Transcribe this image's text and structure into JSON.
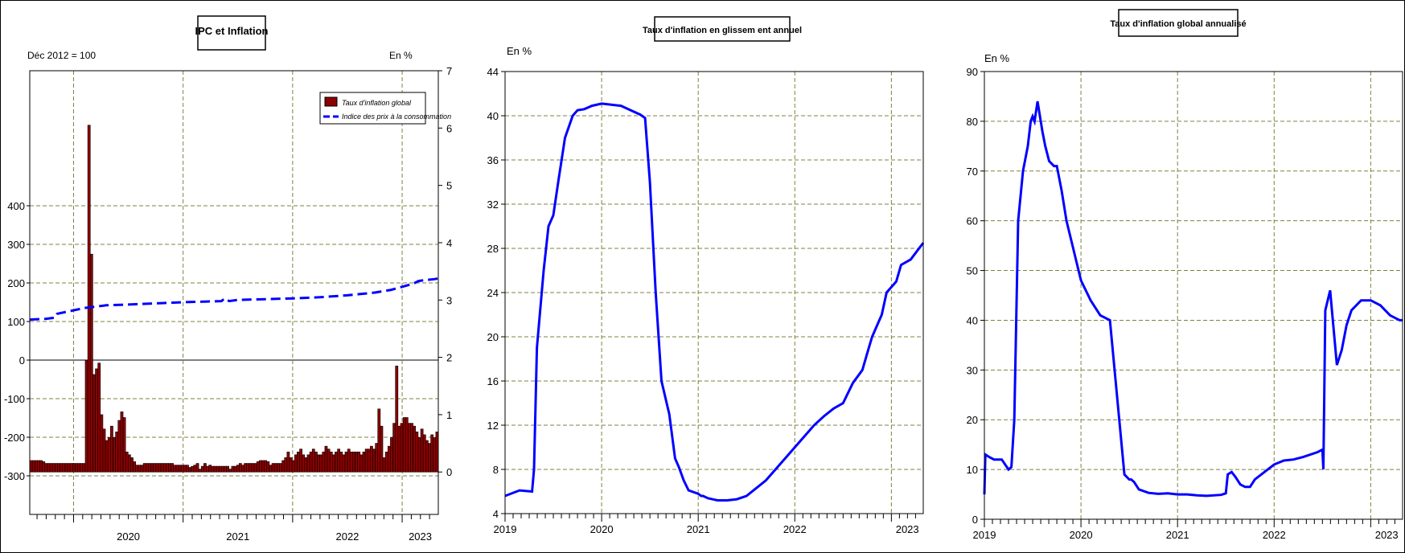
{
  "colors": {
    "frame": "#000000",
    "grid": "#808040",
    "line": "#0000ff",
    "bar_fill": "#8b0000",
    "bar_stroke": "#000000",
    "background": "#ffffff"
  },
  "chart_data": [
    {
      "type": "bar+line",
      "title": "IPC et Inflation",
      "left_axis_label": "Déc 2012 = 100",
      "right_axis_label": "En %",
      "left_ylim": [
        -400,
        750
      ],
      "left_ticks": [
        "-300",
        "-200",
        "-100",
        "0",
        "100",
        "200",
        "300",
        "400"
      ],
      "right_ylim": [
        -0.74,
        7
      ],
      "right_ticks": [
        "0",
        "1",
        "2",
        "3",
        "4",
        "5",
        "6",
        "7"
      ],
      "x_start": 2019.6,
      "x_end": 2023.33,
      "year_labels": [
        "2020",
        "2021",
        "2022",
        "2023"
      ],
      "grid": true,
      "legend_position": "top-right",
      "legend": [
        "Taux d'inflation global",
        "Indice des prix à la consommation"
      ],
      "series": [
        {
          "name": "Taux d'inflation global",
          "type": "bar",
          "axis": "right",
          "values": [
            0.2,
            0.2,
            0.2,
            0.2,
            0.2,
            0.18,
            0.15,
            0.15,
            0.15,
            0.15,
            0.15,
            0.15,
            0.15,
            0.15,
            0.15,
            0.15,
            0.15,
            0.15,
            0.15,
            0.15,
            0.15,
            0.15,
            1.95,
            6.05,
            3.8,
            1.7,
            1.8,
            1.9,
            1.0,
            0.75,
            0.55,
            0.6,
            0.8,
            0.6,
            0.7,
            0.9,
            1.05,
            0.95,
            0.35,
            0.3,
            0.25,
            0.18,
            0.12,
            0.12,
            0.12,
            0.15,
            0.15,
            0.15,
            0.15,
            0.15,
            0.15,
            0.15,
            0.15,
            0.15,
            0.15,
            0.15,
            0.15,
            0.12,
            0.12,
            0.12,
            0.12,
            0.12,
            0.12,
            0.08,
            0.1,
            0.12,
            0.15,
            0.05,
            0.1,
            0.15,
            0.1,
            0.12,
            0.1,
            0.1,
            0.1,
            0.1,
            0.1,
            0.1,
            0.1,
            0.05,
            0.1,
            0.1,
            0.12,
            0.15,
            0.12,
            0.15,
            0.15,
            0.15,
            0.15,
            0.15,
            0.18,
            0.2,
            0.2,
            0.2,
            0.18,
            0.12,
            0.15,
            0.15,
            0.15,
            0.15,
            0.2,
            0.25,
            0.35,
            0.25,
            0.2,
            0.3,
            0.35,
            0.4,
            0.3,
            0.25,
            0.3,
            0.35,
            0.4,
            0.35,
            0.3,
            0.3,
            0.35,
            0.45,
            0.4,
            0.35,
            0.3,
            0.35,
            0.4,
            0.35,
            0.3,
            0.35,
            0.4,
            0.35,
            0.35,
            0.35,
            0.35,
            0.3,
            0.35,
            0.4,
            0.4,
            0.45,
            0.4,
            0.5,
            1.1,
            0.8,
            0.25,
            0.35,
            0.45,
            0.6,
            0.85,
            1.85,
            0.8,
            0.85,
            0.95,
            0.95,
            0.85,
            0.85,
            0.8,
            0.7,
            0.6,
            0.75,
            0.65,
            0.55,
            0.5,
            0.65,
            0.6,
            0.7
          ]
        },
        {
          "name": "Indice des prix à la consommation",
          "type": "line",
          "axis": "left",
          "x": [
            2019.6,
            2019.75,
            2019.83,
            2019.85,
            2019.95,
            2020.1,
            2020.3,
            2020.5,
            2020.75,
            2021.0,
            2021.35,
            2021.38,
            2021.42,
            2021.5,
            2021.75,
            2022.0,
            2022.25,
            2022.5,
            2022.75,
            2022.9,
            2023.0,
            2023.1,
            2023.15,
            2023.2,
            2023.3,
            2023.33
          ],
          "y": [
            105,
            107,
            110,
            120,
            126,
            135,
            142,
            144,
            147,
            150,
            153,
            160,
            153,
            156,
            158,
            160,
            163,
            168,
            175,
            182,
            190,
            198,
            205,
            207,
            210,
            212
          ]
        }
      ]
    },
    {
      "type": "line",
      "title": "Taux d'inflation en glissem ent annuel",
      "ylabel": "En %",
      "ylim": [
        4,
        44
      ],
      "y_ticks": [
        "4",
        "8",
        "12",
        "16",
        "20",
        "24",
        "28",
        "32",
        "36",
        "40",
        "44"
      ],
      "x_start": 2019,
      "x_end": 2023.33,
      "year_labels": [
        "2019",
        "2020",
        "2021",
        "2022",
        "2023"
      ],
      "grid": true,
      "series": [
        {
          "x": [
            2019.0,
            2019.15,
            2019.28,
            2019.3,
            2019.33,
            2019.36,
            2019.4,
            2019.45,
            2019.5,
            2019.55,
            2019.62,
            2019.7,
            2019.75,
            2019.82,
            2019.9,
            2020.0,
            2020.1,
            2020.2,
            2020.3,
            2020.4,
            2020.45,
            2020.5,
            2020.56,
            2020.62,
            2020.7,
            2020.73,
            2020.76,
            2020.8,
            2020.85,
            2020.9,
            2021.0,
            2021.03,
            2021.05,
            2021.1,
            2021.2,
            2021.3,
            2021.4,
            2021.5,
            2021.6,
            2021.7,
            2021.8,
            2021.9,
            2022.0,
            2022.1,
            2022.2,
            2022.3,
            2022.4,
            2022.5,
            2022.6,
            2022.7,
            2022.75,
            2022.8,
            2022.9,
            2022.95,
            2023.05,
            2023.1,
            2023.2,
            2023.33
          ],
          "y": [
            5.6,
            6.1,
            6.0,
            8.0,
            19.0,
            22.0,
            26.0,
            30.0,
            31.0,
            34.0,
            38.0,
            40.0,
            40.5,
            40.6,
            40.9,
            41.1,
            41.0,
            40.9,
            40.5,
            40.1,
            39.8,
            34.0,
            24.0,
            16.0,
            13.0,
            11.0,
            9.0,
            8.2,
            7.0,
            6.1,
            5.8,
            5.6,
            5.6,
            5.4,
            5.2,
            5.2,
            5.3,
            5.6,
            6.3,
            7.0,
            8.0,
            9.0,
            10.0,
            11.0,
            12.0,
            12.8,
            13.5,
            14.0,
            15.8,
            17.0,
            18.5,
            20.0,
            22.0,
            24.0,
            25.0,
            26.5,
            27.0,
            28.5
          ]
        }
      ]
    },
    {
      "type": "line",
      "title": "Taux d'inflation global annualisé",
      "ylabel": "En %",
      "ylim": [
        0,
        90
      ],
      "y_ticks": [
        "0",
        "10",
        "20",
        "30",
        "40",
        "50",
        "60",
        "70",
        "80",
        "90"
      ],
      "x_start": 2019,
      "x_end": 2023.33,
      "year_labels": [
        "2019",
        "2020",
        "2021",
        "2022",
        "2023"
      ],
      "grid": true,
      "series": [
        {
          "x": [
            2019.0,
            2019.01,
            2019.05,
            2019.1,
            2019.18,
            2019.25,
            2019.28,
            2019.31,
            2019.35,
            2019.4,
            2019.45,
            2019.48,
            2019.5,
            2019.52,
            2019.55,
            2019.6,
            2019.63,
            2019.67,
            2019.72,
            2019.75,
            2019.8,
            2019.85,
            2019.9,
            2019.95,
            2020.0,
            2020.1,
            2020.2,
            2020.3,
            2020.45,
            2020.5,
            2020.52,
            2020.55,
            2020.6,
            2020.7,
            2020.8,
            2020.9,
            2021.0,
            2021.1,
            2021.2,
            2021.3,
            2021.45,
            2021.5,
            2021.52,
            2021.56,
            2021.6,
            2021.65,
            2021.7,
            2021.75,
            2021.8,
            2021.9,
            2022.0,
            2022.1,
            2022.2,
            2022.3,
            2022.45,
            2022.5,
            2022.51,
            2022.53,
            2022.58,
            2022.65,
            2022.7,
            2022.75,
            2022.8,
            2022.9,
            2023.0,
            2023.1,
            2023.15,
            2023.2,
            2023.3,
            2023.33
          ],
          "y": [
            5,
            13,
            12.5,
            12,
            12,
            10,
            10.5,
            20,
            60,
            70,
            75,
            80,
            81,
            80,
            84,
            78,
            75,
            72,
            71,
            71,
            66,
            60,
            56,
            52,
            48,
            44,
            41,
            40,
            9,
            8,
            8,
            7.5,
            6,
            5.3,
            5.1,
            5.2,
            5,
            5,
            4.8,
            4.7,
            4.9,
            5.2,
            9,
            9.5,
            8.5,
            7,
            6.5,
            6.5,
            8,
            9.5,
            11,
            11.8,
            12,
            12.5,
            13.5,
            14,
            10,
            42,
            46,
            31,
            34,
            39,
            42,
            44,
            44,
            43,
            42,
            41,
            40,
            40
          ]
        }
      ]
    }
  ]
}
